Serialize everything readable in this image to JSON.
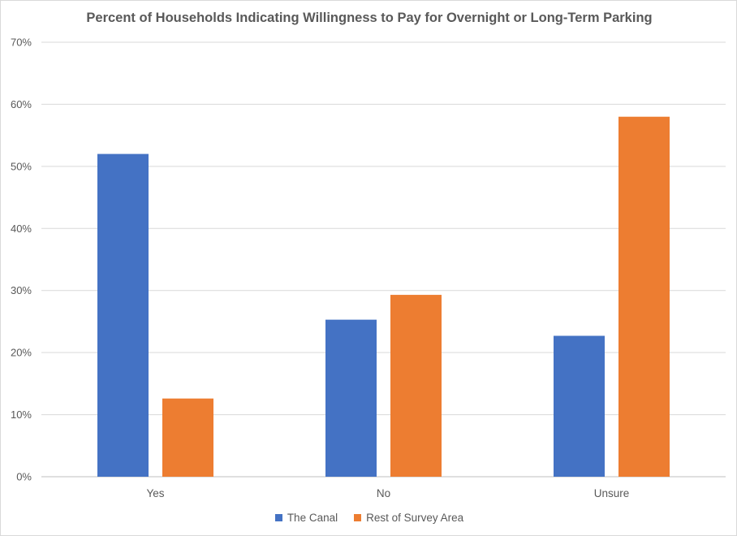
{
  "chart_data": {
    "type": "bar",
    "title": "Percent of Households Indicating Willingness to Pay for Overnight or Long-Term Parking",
    "categories": [
      "Yes",
      "No",
      "Unsure"
    ],
    "series": [
      {
        "name": "The Canal",
        "color": "#4472C4",
        "values": [
          52,
          25.3,
          22.7
        ]
      },
      {
        "name": "Rest of Survey Area",
        "color": "#ED7D31",
        "values": [
          12.6,
          29.3,
          58
        ]
      }
    ],
    "ylim": [
      0,
      70
    ],
    "yticks": [
      0,
      10,
      20,
      30,
      40,
      50,
      60,
      70
    ],
    "ytick_labels": [
      "0%",
      "10%",
      "20%",
      "30%",
      "40%",
      "50%",
      "60%",
      "70%"
    ],
    "grid": true,
    "legend_position": "bottom"
  }
}
